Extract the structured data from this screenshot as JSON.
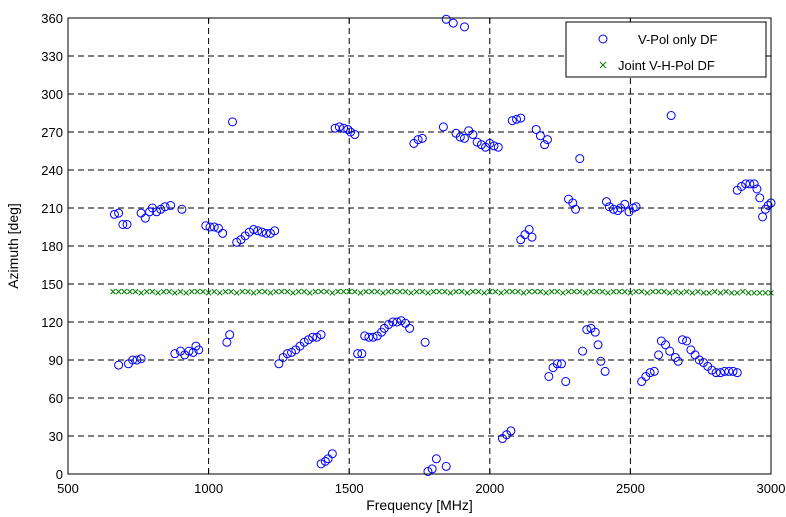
{
  "chart_data": {
    "type": "scatter",
    "title": "",
    "xlabel": "Frequency [MHz]",
    "ylabel": "Azimuth [deg]",
    "xlim": [
      500,
      3000
    ],
    "ylim": [
      0,
      360
    ],
    "xticks": [
      500,
      1000,
      1500,
      2000,
      2500,
      3000
    ],
    "yticks": [
      0,
      30,
      60,
      90,
      120,
      150,
      180,
      210,
      240,
      270,
      300,
      330,
      360
    ],
    "grid": true,
    "legend_position": "top-right",
    "series": [
      {
        "name": "V-Pol only DF",
        "marker": "circle",
        "color": "#0000ff",
        "points": [
          [
            665,
            205
          ],
          [
            680,
            206
          ],
          [
            695,
            197
          ],
          [
            710,
            197
          ],
          [
            680,
            86
          ],
          [
            715,
            87
          ],
          [
            730,
            90
          ],
          [
            745,
            90
          ],
          [
            760,
            91
          ],
          [
            760,
            206
          ],
          [
            775,
            202
          ],
          [
            790,
            207
          ],
          [
            800,
            210
          ],
          [
            815,
            207
          ],
          [
            830,
            209
          ],
          [
            845,
            211
          ],
          [
            865,
            212
          ],
          [
            905,
            209
          ],
          [
            880,
            95
          ],
          [
            900,
            97
          ],
          [
            915,
            94
          ],
          [
            930,
            97
          ],
          [
            945,
            96
          ],
          [
            955,
            101
          ],
          [
            965,
            98
          ],
          [
            990,
            196
          ],
          [
            1005,
            195
          ],
          [
            1020,
            195
          ],
          [
            1035,
            194
          ],
          [
            1050,
            190
          ],
          [
            1065,
            104
          ],
          [
            1075,
            110
          ],
          [
            1085,
            278
          ],
          [
            1100,
            183
          ],
          [
            1115,
            185
          ],
          [
            1130,
            188
          ],
          [
            1145,
            191
          ],
          [
            1160,
            193
          ],
          [
            1175,
            192
          ],
          [
            1190,
            191
          ],
          [
            1205,
            190
          ],
          [
            1220,
            190
          ],
          [
            1235,
            192
          ],
          [
            1250,
            87
          ],
          [
            1265,
            92
          ],
          [
            1280,
            95
          ],
          [
            1295,
            96
          ],
          [
            1310,
            98
          ],
          [
            1325,
            101
          ],
          [
            1340,
            104
          ],
          [
            1355,
            106
          ],
          [
            1370,
            108
          ],
          [
            1385,
            108
          ],
          [
            1400,
            110
          ],
          [
            1400,
            8
          ],
          [
            1415,
            10
          ],
          [
            1425,
            12
          ],
          [
            1440,
            16
          ],
          [
            1450,
            273
          ],
          [
            1465,
            274
          ],
          [
            1480,
            273
          ],
          [
            1495,
            272
          ],
          [
            1505,
            270
          ],
          [
            1520,
            268
          ],
          [
            1530,
            95
          ],
          [
            1545,
            95
          ],
          [
            1555,
            109
          ],
          [
            1570,
            108
          ],
          [
            1585,
            108
          ],
          [
            1600,
            109
          ],
          [
            1615,
            112
          ],
          [
            1625,
            115
          ],
          [
            1640,
            118
          ],
          [
            1655,
            120
          ],
          [
            1670,
            120
          ],
          [
            1685,
            121
          ],
          [
            1700,
            119
          ],
          [
            1715,
            115
          ],
          [
            1730,
            261
          ],
          [
            1745,
            264
          ],
          [
            1760,
            265
          ],
          [
            1770,
            104
          ],
          [
            1780,
            2
          ],
          [
            1795,
            4
          ],
          [
            1810,
            12
          ],
          [
            1845,
            6
          ],
          [
            1835,
            274
          ],
          [
            1845,
            359
          ],
          [
            1870,
            356
          ],
          [
            1910,
            353
          ],
          [
            1880,
            269
          ],
          [
            1895,
            266
          ],
          [
            1910,
            265
          ],
          [
            1925,
            271
          ],
          [
            1940,
            268
          ],
          [
            1955,
            262
          ],
          [
            1970,
            260
          ],
          [
            1985,
            258
          ],
          [
            2000,
            261
          ],
          [
            2015,
            259
          ],
          [
            2030,
            258
          ],
          [
            2045,
            28
          ],
          [
            2060,
            31
          ],
          [
            2075,
            34
          ],
          [
            2080,
            279
          ],
          [
            2095,
            280
          ],
          [
            2110,
            281
          ],
          [
            2110,
            185
          ],
          [
            2125,
            189
          ],
          [
            2140,
            193
          ],
          [
            2150,
            187
          ],
          [
            2165,
            272
          ],
          [
            2180,
            267
          ],
          [
            2195,
            260
          ],
          [
            2205,
            264
          ],
          [
            2210,
            77
          ],
          [
            2225,
            84
          ],
          [
            2240,
            87
          ],
          [
            2255,
            87
          ],
          [
            2270,
            73
          ],
          [
            2280,
            217
          ],
          [
            2295,
            214
          ],
          [
            2305,
            209
          ],
          [
            2320,
            249
          ],
          [
            2330,
            97
          ],
          [
            2345,
            114
          ],
          [
            2360,
            115
          ],
          [
            2375,
            112
          ],
          [
            2385,
            102
          ],
          [
            2395,
            89
          ],
          [
            2410,
            81
          ],
          [
            2415,
            215
          ],
          [
            2425,
            211
          ],
          [
            2440,
            209
          ],
          [
            2455,
            208
          ],
          [
            2465,
            210
          ],
          [
            2480,
            213
          ],
          [
            2495,
            207
          ],
          [
            2510,
            210
          ],
          [
            2520,
            211
          ],
          [
            2540,
            73
          ],
          [
            2555,
            77
          ],
          [
            2570,
            80
          ],
          [
            2585,
            81
          ],
          [
            2600,
            94
          ],
          [
            2610,
            105
          ],
          [
            2625,
            102
          ],
          [
            2640,
            97
          ],
          [
            2645,
            283
          ],
          [
            2660,
            92
          ],
          [
            2670,
            89
          ],
          [
            2685,
            106
          ],
          [
            2700,
            105
          ],
          [
            2715,
            98
          ],
          [
            2730,
            94
          ],
          [
            2745,
            90
          ],
          [
            2760,
            88
          ],
          [
            2775,
            85
          ],
          [
            2790,
            82
          ],
          [
            2805,
            80
          ],
          [
            2820,
            80
          ],
          [
            2835,
            81
          ],
          [
            2850,
            81
          ],
          [
            2865,
            81
          ],
          [
            2880,
            80
          ],
          [
            2880,
            224
          ],
          [
            2895,
            227
          ],
          [
            2910,
            229
          ],
          [
            2925,
            229
          ],
          [
            2940,
            229
          ],
          [
            2950,
            225
          ],
          [
            2960,
            218
          ],
          [
            2970,
            203
          ],
          [
            2980,
            209
          ],
          [
            2990,
            212
          ],
          [
            3000,
            214
          ]
        ]
      },
      {
        "name": "Joint V-H-Pol DF",
        "marker": "x",
        "color": "#008000",
        "points": [
          [
            660,
            144
          ],
          [
            680,
            144
          ],
          [
            700,
            144
          ],
          [
            720,
            144
          ],
          [
            740,
            144
          ],
          [
            760,
            143
          ],
          [
            780,
            144
          ],
          [
            800,
            144
          ],
          [
            820,
            143
          ],
          [
            840,
            144
          ],
          [
            860,
            144
          ],
          [
            880,
            143
          ],
          [
            900,
            144
          ],
          [
            920,
            143
          ],
          [
            940,
            144
          ],
          [
            960,
            144
          ],
          [
            980,
            144
          ],
          [
            1000,
            143
          ],
          [
            1020,
            144
          ],
          [
            1040,
            143
          ],
          [
            1060,
            144
          ],
          [
            1080,
            144
          ],
          [
            1100,
            143
          ],
          [
            1120,
            144
          ],
          [
            1140,
            144
          ],
          [
            1160,
            143
          ],
          [
            1180,
            144
          ],
          [
            1200,
            144
          ],
          [
            1220,
            143
          ],
          [
            1240,
            144
          ],
          [
            1260,
            144
          ],
          [
            1280,
            144
          ],
          [
            1300,
            143
          ],
          [
            1320,
            144
          ],
          [
            1340,
            144
          ],
          [
            1360,
            143
          ],
          [
            1380,
            144
          ],
          [
            1400,
            144
          ],
          [
            1420,
            144
          ],
          [
            1440,
            143
          ],
          [
            1460,
            144
          ],
          [
            1480,
            144
          ],
          [
            1500,
            144
          ],
          [
            1520,
            144
          ],
          [
            1540,
            143
          ],
          [
            1560,
            144
          ],
          [
            1580,
            144
          ],
          [
            1600,
            144
          ],
          [
            1620,
            143
          ],
          [
            1640,
            144
          ],
          [
            1660,
            144
          ],
          [
            1680,
            144
          ],
          [
            1700,
            144
          ],
          [
            1720,
            143
          ],
          [
            1740,
            144
          ],
          [
            1760,
            144
          ],
          [
            1780,
            143
          ],
          [
            1800,
            144
          ],
          [
            1820,
            144
          ],
          [
            1840,
            144
          ],
          [
            1860,
            143
          ],
          [
            1880,
            144
          ],
          [
            1900,
            144
          ],
          [
            1920,
            143
          ],
          [
            1940,
            144
          ],
          [
            1960,
            144
          ],
          [
            1980,
            143
          ],
          [
            2000,
            144
          ],
          [
            2020,
            144
          ],
          [
            2040,
            143
          ],
          [
            2060,
            144
          ],
          [
            2080,
            144
          ],
          [
            2100,
            144
          ],
          [
            2120,
            143
          ],
          [
            2140,
            144
          ],
          [
            2160,
            144
          ],
          [
            2180,
            144
          ],
          [
            2200,
            143
          ],
          [
            2220,
            144
          ],
          [
            2240,
            144
          ],
          [
            2260,
            143
          ],
          [
            2280,
            144
          ],
          [
            2300,
            144
          ],
          [
            2320,
            144
          ],
          [
            2340,
            143
          ],
          [
            2360,
            144
          ],
          [
            2380,
            144
          ],
          [
            2400,
            144
          ],
          [
            2420,
            143
          ],
          [
            2440,
            144
          ],
          [
            2460,
            144
          ],
          [
            2480,
            144
          ],
          [
            2500,
            143
          ],
          [
            2520,
            144
          ],
          [
            2540,
            144
          ],
          [
            2560,
            143
          ],
          [
            2580,
            144
          ],
          [
            2600,
            144
          ],
          [
            2620,
            144
          ],
          [
            2640,
            143
          ],
          [
            2660,
            144
          ],
          [
            2680,
            143
          ],
          [
            2700,
            144
          ],
          [
            2720,
            143
          ],
          [
            2740,
            144
          ],
          [
            2760,
            143
          ],
          [
            2780,
            143
          ],
          [
            2800,
            144
          ],
          [
            2820,
            143
          ],
          [
            2840,
            144
          ],
          [
            2860,
            143
          ],
          [
            2880,
            143
          ],
          [
            2900,
            144
          ],
          [
            2920,
            143
          ],
          [
            2940,
            143
          ],
          [
            2960,
            143
          ],
          [
            2980,
            143
          ],
          [
            3000,
            143
          ]
        ]
      }
    ]
  }
}
